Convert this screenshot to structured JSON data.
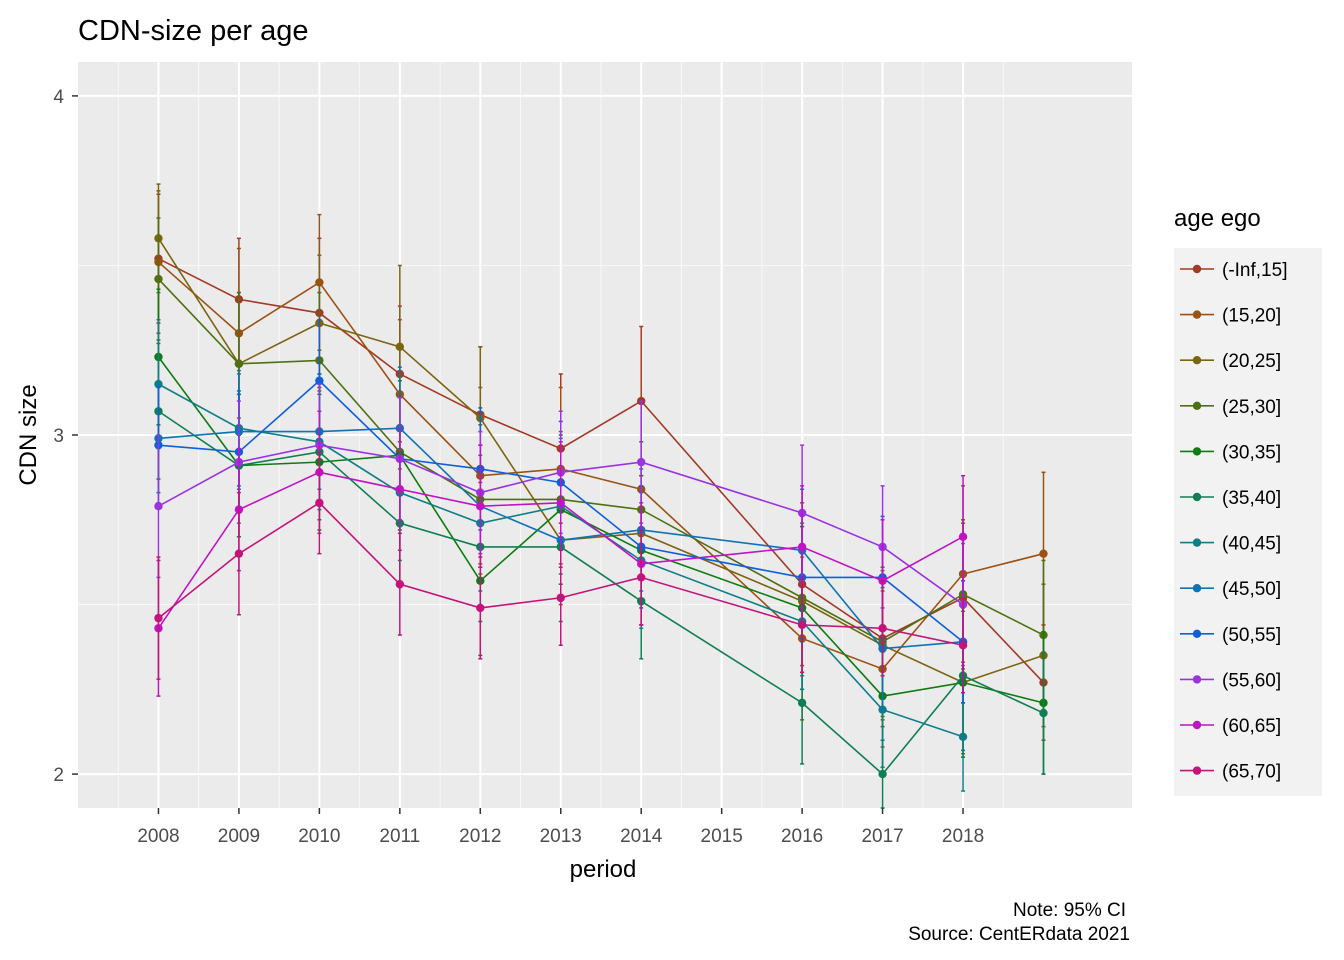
{
  "chart_data": {
    "type": "line",
    "title": "CDN-size per age",
    "xlabel": "period",
    "ylabel": "CDN size",
    "x_ticks": [
      "2008",
      "2009",
      "2010",
      "2011",
      "2012",
      "2013",
      "2014",
      "2015",
      "2016",
      "2017",
      "2018"
    ],
    "y_ticks": [
      2,
      3,
      4
    ],
    "xlim": [
      2007,
      2020.1
    ],
    "ylim": [
      1.9,
      4.1
    ],
    "legend_title": "age ego",
    "legend_position": "right",
    "grid": true,
    "caption": [
      "Note: 95% CI",
      "Source: CentERdata 2021"
    ],
    "series": [
      {
        "name": "(-Inf,15]",
        "color": "#A23A25",
        "points": [
          [
            2008,
            3.52
          ],
          [
            2009,
            3.4
          ],
          [
            2010,
            3.36
          ],
          [
            2011,
            3.18
          ],
          [
            2012,
            3.06
          ],
          [
            2013,
            2.96
          ],
          [
            2014,
            3.1
          ],
          [
            2016,
            2.56
          ],
          [
            2017,
            2.4
          ],
          [
            2018,
            2.52
          ],
          [
            2019,
            2.27
          ]
        ],
        "ci": [
          [
            3.33,
            3.71
          ],
          [
            3.22,
            3.58
          ],
          [
            3.14,
            3.58
          ],
          [
            2.98,
            3.38
          ],
          [
            2.86,
            3.26
          ],
          [
            2.74,
            3.18
          ],
          [
            2.88,
            3.32
          ],
          [
            2.32,
            2.8
          ],
          [
            2.14,
            2.66
          ],
          [
            2.3,
            2.74
          ],
          [
            2.1,
            2.44
          ]
        ]
      },
      {
        "name": "(15,20]",
        "color": "#9C5112",
        "points": [
          [
            2008,
            3.51
          ],
          [
            2009,
            3.3
          ],
          [
            2010,
            3.45
          ],
          [
            2011,
            3.12
          ],
          [
            2012,
            2.88
          ],
          [
            2013,
            2.9
          ],
          [
            2014,
            2.84
          ],
          [
            2016,
            2.4
          ],
          [
            2017,
            2.31
          ],
          [
            2018,
            2.59
          ],
          [
            2019,
            2.65
          ]
        ],
        "ci": [
          [
            3.3,
            3.72
          ],
          [
            3.05,
            3.55
          ],
          [
            3.25,
            3.65
          ],
          [
            2.9,
            3.34
          ],
          [
            2.62,
            3.14
          ],
          [
            2.66,
            3.14
          ],
          [
            2.58,
            3.1
          ],
          [
            2.16,
            2.64
          ],
          [
            2.08,
            2.54
          ],
          [
            2.33,
            2.85
          ],
          [
            2.41,
            2.89
          ]
        ]
      },
      {
        "name": "(20,25]",
        "color": "#7C6410",
        "points": [
          [
            2008,
            3.58
          ],
          [
            2009,
            3.21
          ],
          [
            2010,
            3.33
          ],
          [
            2011,
            3.26
          ],
          [
            2012,
            3.05
          ],
          [
            2013,
            2.69
          ],
          [
            2014,
            2.71
          ],
          [
            2016,
            2.51
          ],
          [
            2017,
            2.38
          ],
          [
            2018,
            2.27
          ],
          [
            2019,
            2.35
          ]
        ],
        "ci": [
          [
            3.42,
            3.74
          ],
          [
            3.0,
            3.42
          ],
          [
            3.13,
            3.53
          ],
          [
            3.02,
            3.5
          ],
          [
            2.84,
            3.26
          ],
          [
            2.5,
            2.88
          ],
          [
            2.5,
            2.92
          ],
          [
            2.29,
            2.73
          ],
          [
            2.16,
            2.6
          ],
          [
            2.06,
            2.48
          ],
          [
            2.14,
            2.56
          ]
        ]
      },
      {
        "name": "(25,30]",
        "color": "#4E7010",
        "points": [
          [
            2008,
            3.46
          ],
          [
            2009,
            3.21
          ],
          [
            2010,
            3.22
          ],
          [
            2011,
            2.95
          ],
          [
            2012,
            2.81
          ],
          [
            2013,
            2.81
          ],
          [
            2014,
            2.78
          ],
          [
            2016,
            2.52
          ],
          [
            2017,
            2.39
          ],
          [
            2018,
            2.53
          ],
          [
            2019,
            2.41
          ]
        ],
        "ci": [
          [
            3.28,
            3.64
          ],
          [
            3.0,
            3.42
          ],
          [
            3.02,
            3.42
          ],
          [
            2.73,
            3.17
          ],
          [
            2.59,
            3.03
          ],
          [
            2.61,
            3.01
          ],
          [
            2.58,
            2.98
          ],
          [
            2.3,
            2.74
          ],
          [
            2.17,
            2.61
          ],
          [
            2.31,
            2.75
          ],
          [
            2.19,
            2.63
          ]
        ]
      },
      {
        "name": "(30,35]",
        "color": "#0E7C10",
        "points": [
          [
            2008,
            3.23
          ],
          [
            2009,
            2.91
          ],
          [
            2010,
            2.92
          ],
          [
            2011,
            2.94
          ],
          [
            2012,
            2.57
          ],
          [
            2013,
            2.78
          ],
          [
            2014,
            2.66
          ],
          [
            2016,
            2.49
          ],
          [
            2017,
            2.23
          ],
          [
            2018,
            2.27
          ],
          [
            2019,
            2.21
          ]
        ],
        "ci": [
          [
            3.03,
            3.43
          ],
          [
            2.7,
            3.12
          ],
          [
            2.72,
            3.12
          ],
          [
            2.72,
            3.16
          ],
          [
            2.35,
            2.79
          ],
          [
            2.56,
            3.0
          ],
          [
            2.44,
            2.88
          ],
          [
            2.25,
            2.73
          ],
          [
            2.02,
            2.44
          ],
          [
            2.05,
            2.49
          ],
          [
            2.0,
            2.42
          ]
        ]
      },
      {
        "name": "(35,40]",
        "color": "#0E7F52",
        "points": [
          [
            2008,
            3.07
          ],
          [
            2009,
            2.91
          ],
          [
            2010,
            2.95
          ],
          [
            2011,
            2.74
          ],
          [
            2012,
            2.67
          ],
          [
            2013,
            2.67
          ],
          [
            2014,
            2.51
          ],
          [
            2016,
            2.21
          ],
          [
            2017,
            2.0
          ],
          [
            2018,
            2.29
          ],
          [
            2019,
            2.18
          ]
        ],
        "ci": [
          [
            2.87,
            3.27
          ],
          [
            2.7,
            3.12
          ],
          [
            2.75,
            3.15
          ],
          [
            2.55,
            2.93
          ],
          [
            2.45,
            2.89
          ],
          [
            2.45,
            2.89
          ],
          [
            2.34,
            2.68
          ],
          [
            2.03,
            2.39
          ],
          [
            1.9,
            2.1
          ],
          [
            2.07,
            2.51
          ],
          [
            2.0,
            2.36
          ]
        ]
      },
      {
        "name": "(40,45]",
        "color": "#0E7F86",
        "points": [
          [
            2008,
            3.15
          ],
          [
            2009,
            3.02
          ],
          [
            2010,
            2.98
          ],
          [
            2011,
            2.83
          ],
          [
            2012,
            2.74
          ],
          [
            2013,
            2.79
          ],
          [
            2014,
            2.63
          ],
          [
            2016,
            2.45
          ],
          [
            2017,
            2.19
          ],
          [
            2018,
            2.11
          ]
        ],
        "ci": [
          [
            2.96,
            3.34
          ],
          [
            2.85,
            3.19
          ],
          [
            2.78,
            3.18
          ],
          [
            2.63,
            3.03
          ],
          [
            2.54,
            2.94
          ],
          [
            2.59,
            2.99
          ],
          [
            2.43,
            2.83
          ],
          [
            2.25,
            2.65
          ],
          [
            2.02,
            2.36
          ],
          [
            1.95,
            2.27
          ]
        ]
      },
      {
        "name": "(45,50]",
        "color": "#0E73B5",
        "points": [
          [
            2008,
            2.99
          ],
          [
            2009,
            3.01
          ],
          [
            2010,
            3.01
          ],
          [
            2011,
            3.02
          ],
          [
            2012,
            2.79
          ],
          [
            2013,
            2.69
          ],
          [
            2014,
            2.72
          ],
          [
            2016,
            2.66
          ],
          [
            2017,
            2.37
          ],
          [
            2018,
            2.39
          ]
        ],
        "ci": [
          [
            2.83,
            3.15
          ],
          [
            2.84,
            3.18
          ],
          [
            2.84,
            3.18
          ],
          [
            2.84,
            3.2
          ],
          [
            2.61,
            2.97
          ],
          [
            2.51,
            2.87
          ],
          [
            2.54,
            2.9
          ],
          [
            2.48,
            2.84
          ],
          [
            2.19,
            2.55
          ],
          [
            2.21,
            2.57
          ]
        ]
      },
      {
        "name": "(50,55]",
        "color": "#0F5FDB",
        "points": [
          [
            2008,
            2.97
          ],
          [
            2009,
            2.95
          ],
          [
            2010,
            3.16
          ],
          [
            2011,
            2.93
          ],
          [
            2012,
            2.9
          ],
          [
            2013,
            2.86
          ],
          [
            2014,
            2.67
          ],
          [
            2016,
            2.58
          ],
          [
            2017,
            2.58
          ],
          [
            2018,
            2.39
          ]
        ],
        "ci": [
          [
            2.8,
            3.14
          ],
          [
            2.77,
            3.13
          ],
          [
            2.98,
            3.34
          ],
          [
            2.75,
            3.11
          ],
          [
            2.72,
            3.08
          ],
          [
            2.68,
            3.04
          ],
          [
            2.49,
            2.85
          ],
          [
            2.4,
            2.76
          ],
          [
            2.4,
            2.76
          ],
          [
            2.21,
            2.57
          ]
        ]
      },
      {
        "name": "(55,60]",
        "color": "#9A34E0",
        "points": [
          [
            2008,
            2.79
          ],
          [
            2009,
            2.92
          ],
          [
            2010,
            2.97
          ],
          [
            2011,
            2.93
          ],
          [
            2012,
            2.83
          ],
          [
            2013,
            2.89
          ],
          [
            2014,
            2.92
          ],
          [
            2016,
            2.77
          ],
          [
            2017,
            2.67
          ],
          [
            2018,
            2.5
          ]
        ],
        "ci": [
          [
            2.58,
            3.0
          ],
          [
            2.74,
            3.1
          ],
          [
            2.79,
            3.15
          ],
          [
            2.75,
            3.11
          ],
          [
            2.65,
            3.01
          ],
          [
            2.71,
            3.07
          ],
          [
            2.74,
            3.1
          ],
          [
            2.57,
            2.97
          ],
          [
            2.49,
            2.85
          ],
          [
            2.32,
            2.68
          ]
        ]
      },
      {
        "name": "(60,65]",
        "color": "#C013C4",
        "points": [
          [
            2008,
            2.43
          ],
          [
            2009,
            2.78
          ],
          [
            2010,
            2.89
          ],
          [
            2011,
            2.84
          ],
          [
            2012,
            2.79
          ],
          [
            2013,
            2.8
          ],
          [
            2014,
            2.62
          ],
          [
            2016,
            2.67
          ],
          [
            2017,
            2.57
          ],
          [
            2018,
            2.7
          ]
        ],
        "ci": [
          [
            2.23,
            2.63
          ],
          [
            2.6,
            2.96
          ],
          [
            2.71,
            3.07
          ],
          [
            2.66,
            3.02
          ],
          [
            2.61,
            2.97
          ],
          [
            2.62,
            2.98
          ],
          [
            2.44,
            2.8
          ],
          [
            2.49,
            2.85
          ],
          [
            2.39,
            2.75
          ],
          [
            2.52,
            2.88
          ]
        ]
      },
      {
        "name": "(65,70]",
        "color": "#C4137A",
        "points": [
          [
            2008,
            2.46
          ],
          [
            2009,
            2.65
          ],
          [
            2010,
            2.8
          ],
          [
            2011,
            2.56
          ],
          [
            2012,
            2.49
          ],
          [
            2013,
            2.52
          ],
          [
            2014,
            2.58
          ],
          [
            2016,
            2.44
          ],
          [
            2017,
            2.43
          ],
          [
            2018,
            2.38
          ]
        ],
        "ci": [
          [
            2.28,
            2.64
          ],
          [
            2.47,
            2.83
          ],
          [
            2.65,
            2.95
          ],
          [
            2.41,
            2.71
          ],
          [
            2.34,
            2.64
          ],
          [
            2.38,
            2.66
          ],
          [
            2.44,
            2.72
          ],
          [
            2.3,
            2.58
          ],
          [
            2.29,
            2.57
          ],
          [
            2.24,
            2.52
          ]
        ]
      }
    ]
  }
}
